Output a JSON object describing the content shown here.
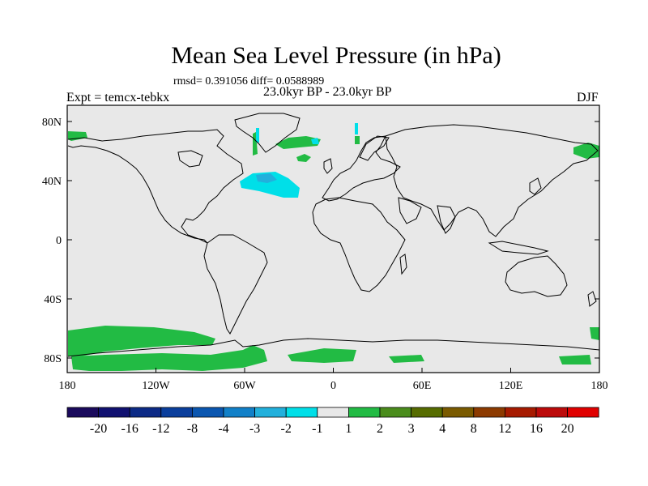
{
  "title": "Mean Sea Level Pressure (in hPa)",
  "stats": "rmsd= 0.391056 diff= 0.0588989",
  "experiment": "Expt = temcx-tebkx",
  "period": "23.0kyr BP - 23.0kyr BP",
  "season": "DJF",
  "lat_ticks": [
    "80N",
    "40N",
    "0",
    "40S",
    "80S"
  ],
  "lon_ticks": [
    "180",
    "120W",
    "60W",
    "0",
    "60E",
    "120E",
    "180"
  ],
  "colorbar": {
    "labels": [
      "-20",
      "-16",
      "-12",
      "-8",
      "-4",
      "-3",
      "-2",
      "-1",
      "1",
      "2",
      "3",
      "4",
      "8",
      "12",
      "16",
      "20"
    ],
    "colors": [
      "#1a0a5c",
      "#101070",
      "#0c2a86",
      "#0a3e9c",
      "#0a56b0",
      "#1180c8",
      "#22b0dc",
      "#00dfe8",
      "#e8e8e8",
      "#22bb44",
      "#4a8c1c",
      "#566c00",
      "#7a5a00",
      "#8c3a00",
      "#a61a00",
      "#bc0a0a",
      "#e00000"
    ]
  },
  "map_colors": {
    "ocean_land": "#e8e8e8",
    "positive": "#22bb44",
    "negative_light": "#00dfe8",
    "negative_mid": "#22b0dc"
  }
}
